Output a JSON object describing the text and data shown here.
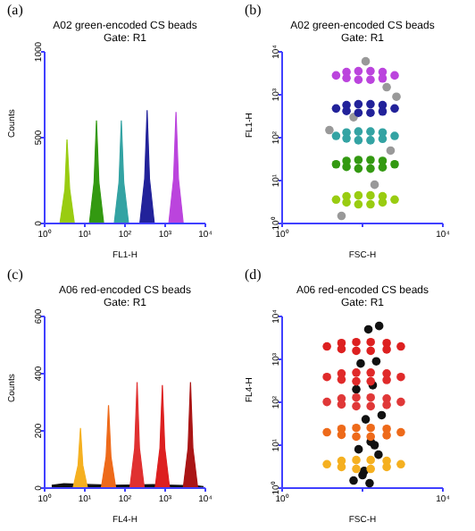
{
  "chart_data": [
    {
      "type": "area",
      "title": "A02 green-encoded CS beads",
      "subtitle": "Gate: R1",
      "xlabel": "FL1-H",
      "ylabel": "Counts",
      "annotations": [
        "(a)"
      ],
      "log": "x",
      "xlim": [
        1,
        10000
      ],
      "xticks": [
        {
          "value": 1,
          "label": "10⁰"
        },
        {
          "value": 10,
          "label": "10¹"
        },
        {
          "value": 100,
          "label": "10²"
        },
        {
          "value": 1000,
          "label": "10³"
        },
        {
          "value": 10000,
          "label": "10⁴"
        }
      ],
      "ylim": [
        0,
        1000
      ],
      "yticks": [
        0,
        500,
        1000
      ],
      "series": [
        {
          "color": "#99cc11",
          "x": [
            2.4,
            3.2,
            3.6,
            4.2,
            5.5
          ],
          "values": [
            0,
            200,
            490,
            200,
            0
          ]
        },
        {
          "color": "#339911",
          "x": [
            13,
            17,
            19.5,
            22.4,
            29.5
          ],
          "values": [
            0,
            240,
            600,
            240,
            0
          ]
        },
        {
          "color": "#33a3a3",
          "x": [
            54,
            71,
            81,
            93,
            123
          ],
          "values": [
            0,
            240,
            600,
            240,
            0
          ]
        },
        {
          "color": "#22229a",
          "x": [
            234,
            309,
            355,
            407,
            537
          ],
          "values": [
            0,
            260,
            660,
            260,
            0
          ]
        },
        {
          "color": "#bb44dd",
          "x": [
            1230,
            1620,
            1860,
            2140,
            2820
          ],
          "values": [
            0,
            260,
            650,
            260,
            0
          ]
        }
      ]
    },
    {
      "type": "scatter",
      "title": "A02 green-encoded CS beads",
      "subtitle": "Gate: R1",
      "xlabel": "FSC-H",
      "ylabel": "FL1-H",
      "annotations": [
        "(b)"
      ],
      "log": "xy",
      "xlim": [
        1,
        10000
      ],
      "xticks": [
        {
          "value": 1,
          "label": "10⁰"
        },
        {
          "value": 100,
          "label": null
        },
        {
          "value": 10000,
          "label": "10⁴"
        }
      ],
      "ylim": [
        1,
        10000
      ],
      "yticks": [
        {
          "value": 1,
          "label": "10⁰"
        },
        {
          "value": 10,
          "label": "10¹"
        },
        {
          "value": 100,
          "label": "10²"
        },
        {
          "value": 1000,
          "label": "10³"
        },
        {
          "value": 10000,
          "label": "10⁴"
        }
      ],
      "series": [
        {
          "color": "#999999",
          "x": [
            30,
            200,
            500,
            60,
            700,
            120,
            400,
            15
          ],
          "values": [
            1.5,
            8,
            50,
            300,
            900,
            6000,
            1500,
            150
          ]
        },
        {
          "color": "#bb44dd",
          "x": [
            22,
            40,
            40,
            79,
            79,
            158,
            158,
            316,
            316,
            631
          ],
          "values": [
            2820,
            3380,
            2450,
            3550,
            2240,
            3550,
            2240,
            3380,
            2400,
            2820
          ]
        },
        {
          "color": "#22229a",
          "x": [
            22,
            40,
            40,
            79,
            79,
            158,
            158,
            316,
            316,
            631
          ],
          "values": [
            479,
            575,
            417,
            603,
            380,
            603,
            380,
            575,
            407,
            479
          ]
        },
        {
          "color": "#33a3a3",
          "x": [
            22,
            40,
            40,
            79,
            79,
            158,
            158,
            316,
            316,
            631
          ],
          "values": [
            110,
            132,
            96,
            139,
            87,
            139,
            87,
            132,
            94,
            110
          ]
        },
        {
          "color": "#339911",
          "x": [
            22,
            40,
            40,
            79,
            79,
            158,
            158,
            316,
            316,
            631
          ],
          "values": [
            24,
            28.8,
            20.9,
            30.2,
            19,
            30.2,
            19,
            28.8,
            20.4,
            24
          ]
        },
        {
          "color": "#99cc11",
          "x": [
            22,
            40,
            40,
            79,
            79,
            158,
            158,
            316,
            316,
            631
          ],
          "values": [
            3.6,
            4.3,
            3.1,
            4.5,
            2.8,
            4.5,
            2.8,
            4.3,
            3.1,
            3.6
          ]
        }
      ]
    },
    {
      "type": "area",
      "title": "A06 red-encoded CS beads",
      "subtitle": "Gate: R1",
      "xlabel": "FL4-H",
      "ylabel": "Counts",
      "annotations": [
        "(c)"
      ],
      "log": "x",
      "xlim": [
        1,
        10000
      ],
      "xticks": [
        {
          "value": 1,
          "label": "10⁰"
        },
        {
          "value": 10,
          "label": "10¹"
        },
        {
          "value": 100,
          "label": "10²"
        },
        {
          "value": 1000,
          "label": "10³"
        },
        {
          "value": 10000,
          "label": "10⁴"
        }
      ],
      "ylim": [
        0,
        600
      ],
      "yticks": [
        0,
        200,
        400,
        600
      ],
      "series": [
        {
          "color": "#111111",
          "x": [
            1.5,
            3,
            15,
            60,
            500,
            1500,
            6000,
            9000
          ],
          "values": [
            10,
            15,
            12,
            10,
            12,
            10,
            8,
            5
          ]
        },
        {
          "color": "#f5b020",
          "x": [
            5.1,
            6.8,
            7.8,
            8.9,
            11.7
          ],
          "values": [
            0,
            80,
            210,
            80,
            0
          ]
        },
        {
          "color": "#ee6a1a",
          "x": [
            25.7,
            33.9,
            38.9,
            44.7,
            58.9
          ],
          "values": [
            0,
            110,
            290,
            110,
            0
          ]
        },
        {
          "color": "#e03030",
          "x": [
            132,
            174,
            200,
            229,
            302
          ],
          "values": [
            0,
            140,
            370,
            140,
            0
          ]
        },
        {
          "color": "#dd2020",
          "x": [
            562,
            741,
            851,
            977,
            1288
          ],
          "values": [
            0,
            140,
            360,
            140,
            0
          ]
        },
        {
          "color": "#aa1515",
          "x": [
            2818,
            3715,
            4266,
            4898,
            6457
          ],
          "values": [
            0,
            140,
            370,
            140,
            0
          ]
        }
      ]
    },
    {
      "type": "scatter",
      "title": "A06 red-encoded CS beads",
      "subtitle": "Gate: R1",
      "xlabel": "FSC-H",
      "ylabel": "FL4-H",
      "annotations": [
        "(d)"
      ],
      "log": "xy",
      "xlim": [
        1,
        10000
      ],
      "xticks": [
        {
          "value": 1,
          "label": "10⁰"
        },
        {
          "value": 100,
          "label": null
        },
        {
          "value": 10000,
          "label": "10⁴"
        }
      ],
      "ylim": [
        1,
        10000
      ],
      "yticks": [
        {
          "value": 1,
          "label": "10⁰"
        },
        {
          "value": 10,
          "label": "10¹"
        },
        {
          "value": 100,
          "label": "10²"
        },
        {
          "value": 1000,
          "label": "10³"
        },
        {
          "value": 10000,
          "label": "10⁴"
        }
      ],
      "series": [
        {
          "color": "#111111",
          "x": [
            60,
            100,
            150,
            250,
            80,
            200,
            120,
            300,
            70,
            180,
            90,
            220,
            140,
            260,
            110,
            160
          ],
          "values": [
            1.5,
            2,
            1.3,
            6,
            8,
            10,
            40,
            50,
            200,
            250,
            800,
            900,
            5000,
            6000,
            2.5,
            12
          ]
        },
        {
          "color": "#dd2020",
          "x": [
            13,
            30,
            30,
            70,
            70,
            160,
            160,
            400,
            400,
            900
          ],
          "values": [
            2000,
            2400,
            1740,
            2520,
            1580,
            2520,
            1580,
            2400,
            1700,
            2000
          ]
        },
        {
          "color": "#e02a2a",
          "x": [
            13,
            30,
            30,
            70,
            70,
            160,
            160,
            400,
            400,
            900
          ],
          "values": [
            389,
            467,
            338,
            490,
            307,
            490,
            307,
            467,
            331,
            389
          ]
        },
        {
          "color": "#e03838",
          "x": [
            13,
            30,
            30,
            70,
            70,
            160,
            160,
            400,
            400,
            900
          ],
          "values": [
            102,
            122,
            89,
            129,
            81,
            129,
            81,
            122,
            87,
            102
          ]
        },
        {
          "color": "#ee6a1a",
          "x": [
            13,
            30,
            30,
            70,
            70,
            160,
            160,
            400,
            400,
            900
          ],
          "values": [
            20,
            24,
            17.4,
            25.2,
            15.8,
            25.2,
            15.8,
            24,
            17,
            20
          ]
        },
        {
          "color": "#f5b020",
          "x": [
            13,
            30,
            30,
            70,
            70,
            160,
            160,
            400,
            400,
            900
          ],
          "values": [
            3.6,
            4.3,
            3.1,
            4.5,
            2.8,
            4.5,
            2.8,
            4.3,
            3.1,
            3.6
          ]
        }
      ]
    }
  ]
}
